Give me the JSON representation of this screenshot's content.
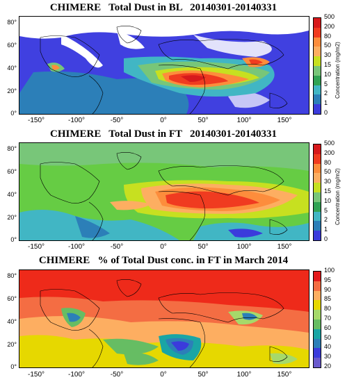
{
  "panels": [
    {
      "title": "CHIMERE   Total Dust in BL   20140301-20140331",
      "colorbar_title": "Concentration (mg/m2)",
      "colorbar_labels": [
        "500",
        "200",
        "80",
        "50",
        "30",
        "15",
        "10",
        "5",
        "2",
        "1",
        "0"
      ],
      "colorbar_colors": [
        "#d7191c",
        "#f03b20",
        "#fd8d3c",
        "#fdae61",
        "#c7e020",
        "#78c679",
        "#31a354",
        "#41b6c4",
        "#2c7fb8",
        "#3b3bdc",
        "#ffffff"
      ],
      "y_ticks": [
        "80°",
        "60°",
        "40°",
        "20°",
        "0°"
      ],
      "x_ticks": [
        "-150°",
        "-100°",
        "-50°",
        "0°",
        "50°",
        "100°",
        "150°"
      ],
      "background_color": "#4040e0"
    },
    {
      "title": "CHIMERE   Total Dust in FT   20140301-20140331",
      "colorbar_title": "Concentration (mg/m2)",
      "colorbar_labels": [
        "500",
        "200",
        "80",
        "50",
        "30",
        "15",
        "10",
        "5",
        "2",
        "1",
        "0"
      ],
      "colorbar_colors": [
        "#d7191c",
        "#f03b20",
        "#fd8d3c",
        "#fdae61",
        "#c7e020",
        "#78c679",
        "#31a354",
        "#41b6c4",
        "#2c7fb8",
        "#3b3bdc",
        "#ffffff"
      ],
      "y_ticks": [
        "80°",
        "60°",
        "40°",
        "20°",
        "0°"
      ],
      "x_ticks": [
        "-150°",
        "-100°",
        "-50°",
        "0°",
        "50°",
        "100°",
        "150°"
      ],
      "background_color": "#66cc44"
    },
    {
      "title": "CHIMERE   % of Total Dust conc. in FT in March 2014",
      "colorbar_title": "",
      "colorbar_labels": [
        "100",
        "95",
        "90",
        "85",
        "80",
        "70",
        "60",
        "50",
        "40",
        "30",
        "20"
      ],
      "colorbar_colors": [
        "#e31a1c",
        "#f46d43",
        "#fdae61",
        "#e6d800",
        "#a6d96a",
        "#66bd63",
        "#1aa5a5",
        "#2c7fb8",
        "#3b3bdc",
        "#6a5acd",
        "#ffffff"
      ],
      "y_ticks": [
        "80°",
        "60°",
        "40°",
        "20°",
        "0°"
      ],
      "x_ticks": [
        "-150°",
        "-100°",
        "-50°",
        "0°",
        "50°",
        "100°",
        "150°"
      ],
      "background_color": "#ee2a1a"
    }
  ]
}
